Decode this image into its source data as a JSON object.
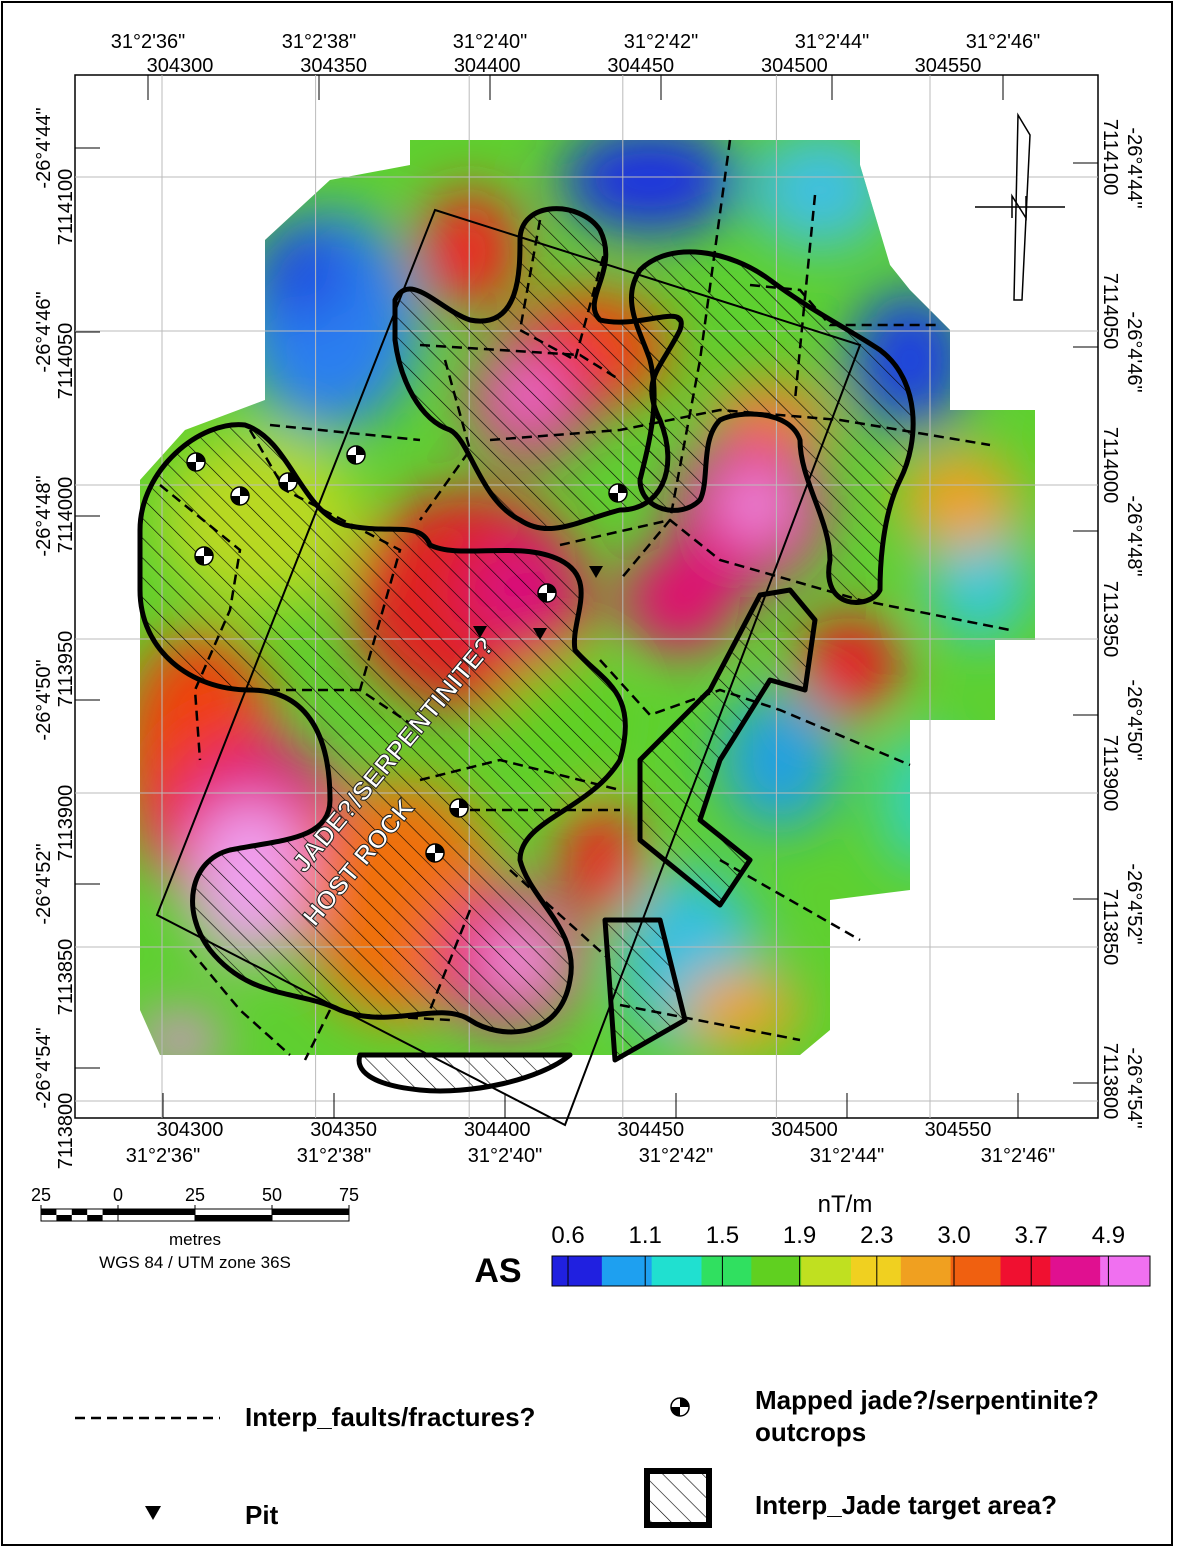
{
  "map": {
    "longitude_labels": [
      "31°2'36\"",
      "31°2'38\"",
      "31°2'40\"",
      "31°2'42\"",
      "31°2'44\"",
      "31°2'46\""
    ],
    "eastings": [
      304300,
      304350,
      304400,
      304450,
      304500,
      304550
    ],
    "latitude_labels": [
      "-26°4'44\"",
      "-26°4'46\"",
      "-26°4'48\"",
      "-26°4'50\"",
      "-26°4'52\"",
      "-26°4'54\""
    ],
    "northings": [
      7114100,
      7114050,
      7114000,
      7113950,
      7113900,
      7113850,
      7113800
    ],
    "annotation": [
      "JADE?/SERPENTINITE?",
      "HOST ROCK"
    ]
  },
  "scale_bar": {
    "ticks": [
      {
        "value": -25,
        "label": "25"
      },
      0,
      25,
      50,
      75
    ],
    "unit": "metres",
    "projection": "WGS 84 / UTM zone 36S"
  },
  "color_scale": {
    "unit": "nT/m",
    "title": "AS",
    "ticks": [
      0.6,
      1.1,
      1.5,
      1.9,
      2.3,
      {
        "value": 3,
        "label": "3.0"
      },
      3.7,
      4.9
    ],
    "colors": [
      "#2020e0",
      "#1ea0f0",
      "#20e0d0",
      "#30e060",
      "#60d020",
      "#c0e020",
      "#f0d020",
      "#f0a020",
      "#f06010",
      "#f01030",
      "#e01090",
      "#f070f0"
    ]
  },
  "legend": {
    "items": [
      "Interp_faults/fractures?",
      "Mapped jade?/serpentinite? outcrops",
      "Pit",
      "Interp_Jade target area?"
    ]
  }
}
